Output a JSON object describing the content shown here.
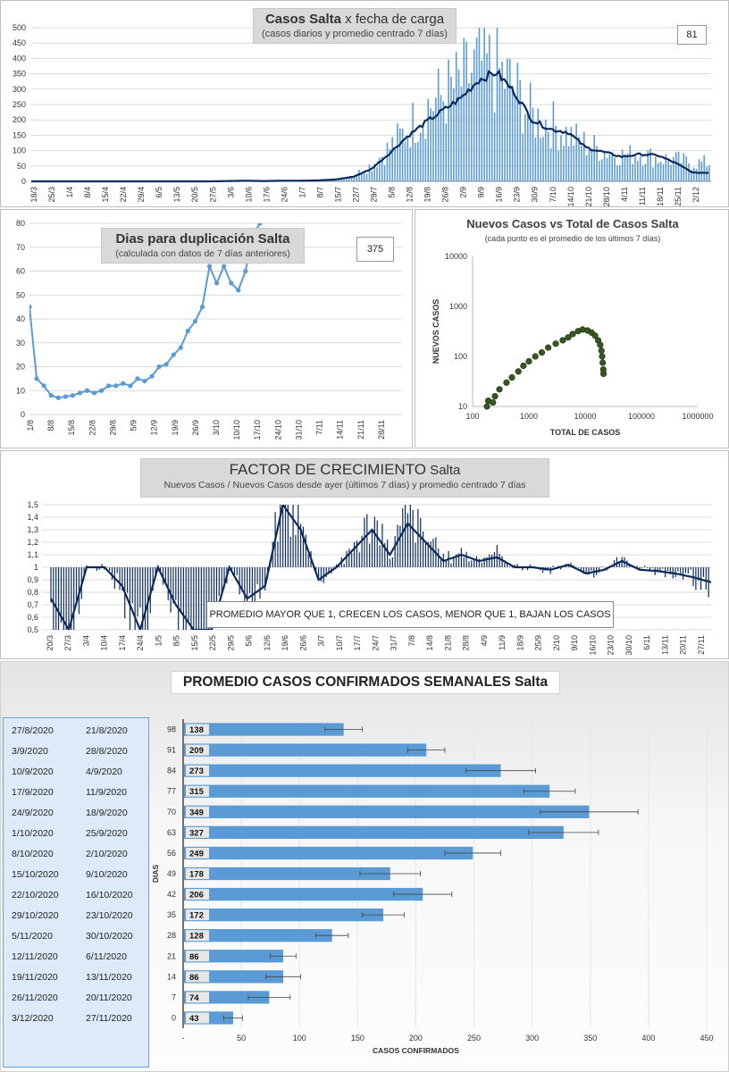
{
  "panels": {
    "p1": {
      "title_bold": "Casos Salta",
      "title_rest": " x fecha de carga",
      "subtitle": "(casos diarios y promedio  centrado 7 días)",
      "kpi": "81"
    },
    "p2": {
      "title": "Dias para duplicación Salta",
      "subtitle": "(calculada con datos de 7 días anteriores)",
      "kpi": "375"
    },
    "p3": {
      "title": "Nuevos Casos vs Total de Casos Salta",
      "subtitle": "(cada punto es el promedio de los últimos 7 días)"
    },
    "p4": {
      "title_main": "FACTOR DE CRECIMIENTO",
      "title_suffix": " Salta",
      "subtitle": "Nuevos Casos  / Nuevos Casos desde ayer (últimos 7 días) y promedio  centrado 7 días",
      "note": "PROMEDIO MAYOR QUE 1, CRECEN LOS CASOS, MENOR QUE 1, BAJAN LOS CASOS"
    },
    "p5": {
      "title": "PROMEDIO CASOS CONFIRMADOS SEMANALES Salta"
    }
  },
  "colors": {
    "bars": "#5b9bd5",
    "line": "#0b2a5c",
    "dup": "#5b9bd5",
    "scatter": "#375623",
    "grid": "#d9d9d9"
  },
  "chart_data": [
    {
      "type": "bar",
      "title": "Casos Salta x fecha de carga",
      "subtitle": "(casos diarios y promedio  centrado 7 días)",
      "ylim": [
        0,
        500
      ],
      "yticks": [
        0,
        50,
        100,
        150,
        200,
        250,
        300,
        350,
        400,
        450,
        500
      ],
      "xticks": [
        "18/3",
        "25/3",
        "1/4",
        "8/4",
        "15/4",
        "22/4",
        "29/4",
        "6/5",
        "13/5",
        "20/5",
        "27/5",
        "3/6",
        "10/6",
        "17/6",
        "24/6",
        "1/7",
        "8/7",
        "15/7",
        "22/7",
        "29/7",
        "5/8",
        "12/8",
        "19/8",
        "26/8",
        "2/9",
        "9/9",
        "16/9",
        "23/9",
        "30/9",
        "7/10",
        "14/10",
        "21/10",
        "28/10",
        "4/11",
        "11/11",
        "18/11",
        "25/11",
        "2/12"
      ],
      "series": [
        {
          "type": "bar",
          "weekly_daily_values": [
            0,
            0,
            0,
            0,
            0,
            0,
            0,
            0,
            0,
            0,
            0,
            1,
            2,
            1,
            3,
            2,
            4,
            8,
            20,
            55,
            110,
            170,
            240,
            280,
            320,
            380,
            360,
            300,
            210,
            190,
            150,
            120,
            100,
            85,
            90,
            75,
            70,
            60
          ]
        },
        {
          "type": "line",
          "weekly_average_values": [
            0,
            0,
            0,
            0,
            0,
            0,
            0,
            0,
            0,
            0,
            0,
            1,
            2,
            1,
            2,
            2,
            3,
            6,
            15,
            40,
            90,
            145,
            190,
            230,
            270,
            330,
            355,
            290,
            200,
            170,
            160,
            110,
            95,
            80,
            88,
            85,
            60,
            28
          ]
        }
      ]
    },
    {
      "type": "line",
      "title": "Dias para duplicación Salta",
      "subtitle": "(calculada con datos de 7 días anteriores)",
      "ylim": [
        0,
        80
      ],
      "yticks": [
        0,
        10,
        20,
        30,
        40,
        50,
        60,
        70,
        80
      ],
      "xticks": [
        "1/8",
        "8/8",
        "15/8",
        "22/8",
        "29/8",
        "5/9",
        "12/9",
        "19/9",
        "26/9",
        "3/10",
        "10/10",
        "17/10",
        "24/10",
        "31/10",
        "7/11",
        "14/11",
        "21/11",
        "28/11"
      ],
      "values": [
        45,
        15,
        12,
        8,
        7,
        7.5,
        8,
        9,
        10,
        9,
        10,
        12,
        12,
        13,
        12,
        15,
        14,
        16,
        20,
        21,
        25,
        28,
        35,
        39,
        45,
        62,
        55,
        62,
        55,
        52,
        60,
        75,
        82
      ]
    },
    {
      "type": "scatter",
      "title": "Nuevos Casos vs Total de Casos Salta",
      "subtitle": "(cada punto es el promedio de los últimos 7 días)",
      "xscale": "log",
      "yscale": "log",
      "xlim": [
        100,
        1000000
      ],
      "ylim": [
        10,
        10000
      ],
      "xticks": [
        "100",
        "1000",
        "10000",
        "100000",
        "1000000"
      ],
      "yticks": [
        "10",
        "100",
        "1000",
        "10000"
      ],
      "xlabel": "TOTAL DE CASOS",
      "ylabel": "NUEVOS CASOS",
      "points": [
        [
          180,
          10
        ],
        [
          190,
          13
        ],
        [
          230,
          12
        ],
        [
          250,
          16
        ],
        [
          300,
          22
        ],
        [
          400,
          30
        ],
        [
          500,
          38
        ],
        [
          650,
          50
        ],
        [
          800,
          65
        ],
        [
          1000,
          80
        ],
        [
          1300,
          100
        ],
        [
          1700,
          120
        ],
        [
          2200,
          150
        ],
        [
          3000,
          180
        ],
        [
          4000,
          210
        ],
        [
          5000,
          240
        ],
        [
          6000,
          280
        ],
        [
          7500,
          320
        ],
        [
          9000,
          345
        ],
        [
          11000,
          330
        ],
        [
          13000,
          300
        ],
        [
          15000,
          260
        ],
        [
          17000,
          210
        ],
        [
          18500,
          170
        ],
        [
          19500,
          130
        ],
        [
          20000,
          100
        ],
        [
          20500,
          75
        ],
        [
          21000,
          55
        ],
        [
          21200,
          45
        ]
      ]
    },
    {
      "type": "bar",
      "title": "FACTOR DE CRECIMIENTO Salta",
      "ylim": [
        0.5,
        1.5
      ],
      "yticks": [
        "0,5",
        "0,6",
        "0,7",
        "0,8",
        "0,9",
        "1",
        "1,1",
        "1,2",
        "1,3",
        "1,4",
        "1,5"
      ],
      "xticks": [
        "20/3",
        "27/3",
        "3/4",
        "10/4",
        "17/4",
        "24/4",
        "1/5",
        "8/5",
        "15/5",
        "22/5",
        "29/5",
        "5/6",
        "12/6",
        "19/6",
        "26/6",
        "3/7",
        "10/7",
        "17/7",
        "24/7",
        "31/7",
        "7/8",
        "14/8",
        "21/8",
        "28/8",
        "4/9",
        "11/9",
        "18/9",
        "25/9",
        "2/10",
        "9/10",
        "16/10",
        "23/10",
        "30/10",
        "6/11",
        "13/11",
        "20/11",
        "27/11"
      ],
      "series": [
        {
          "type": "line",
          "name": "",
          "values": [
            0.75,
            0.5,
            1,
            1,
            0.85,
            0.5,
            1,
            0.7,
            0.5,
            0.5,
            1,
            0.75,
            0.85,
            1.5,
            1.3,
            0.9,
            1.0,
            1.15,
            1.3,
            1.1,
            1.35,
            1.2,
            1.05,
            1.1,
            1.05,
            1.08,
            1.0,
            1.0,
            0.98,
            1.02,
            0.95,
            0.98,
            1.05,
            0.98,
            0.97,
            0.95,
            0.92,
            0.88
          ]
        }
      ]
    },
    {
      "type": "bar",
      "orientation": "horizontal",
      "title": "PROMEDIO CASOS CONFIRMADOS SEMANALES Salta",
      "xlabel": "CASOS CONFIRMADOS",
      "ylabel": "DIAS",
      "xlim": [
        0,
        450
      ],
      "xticks": [
        "-",
        "50",
        "100",
        "150",
        "200",
        "250",
        "300",
        "350",
        "400",
        "450"
      ],
      "rows": [
        {
          "end": "27/8/2020",
          "start": "21/8/2020",
          "days": "98",
          "value": 138,
          "err": 16
        },
        {
          "end": "3/9/2020",
          "start": "28/8/2020",
          "days": "91",
          "value": 209,
          "err": 16
        },
        {
          "end": "10/9/2020",
          "start": "4/9/2020",
          "days": "84",
          "value": 273,
          "err": 30
        },
        {
          "end": "17/9/2020",
          "start": "11/9/2020",
          "days": "77",
          "value": 315,
          "err": 22
        },
        {
          "end": "24/9/2020",
          "start": "18/9/2020",
          "days": "70",
          "value": 349,
          "err": 42
        },
        {
          "end": "1/10/2020",
          "start": "25/9/2020",
          "days": "63",
          "value": 327,
          "err": 30
        },
        {
          "end": "8/10/2020",
          "start": "2/10/2020",
          "days": "56",
          "value": 249,
          "err": 24
        },
        {
          "end": "15/10/2020",
          "start": "9/10/2020",
          "days": "49",
          "value": 178,
          "err": 26
        },
        {
          "end": "22/10/2020",
          "start": "16/10/2020",
          "days": "42",
          "value": 206,
          "err": 25
        },
        {
          "end": "29/10/2020",
          "start": "23/10/2020",
          "days": "35",
          "value": 172,
          "err": 18
        },
        {
          "end": "5/11/2020",
          "start": "30/10/2020",
          "days": "28",
          "value": 128,
          "err": 14
        },
        {
          "end": "12/11/2020",
          "start": "6/11/2020",
          "days": "21",
          "value": 86,
          "err": 11
        },
        {
          "end": "19/11/2020",
          "start": "13/11/2020",
          "days": "14",
          "value": 86,
          "err": 15
        },
        {
          "end": "26/11/2020",
          "start": "20/11/2020",
          "days": "7",
          "value": 74,
          "err": 18
        },
        {
          "end": "3/12/2020",
          "start": "27/11/2020",
          "days": "0",
          "value": 43,
          "err": 8
        }
      ]
    }
  ]
}
